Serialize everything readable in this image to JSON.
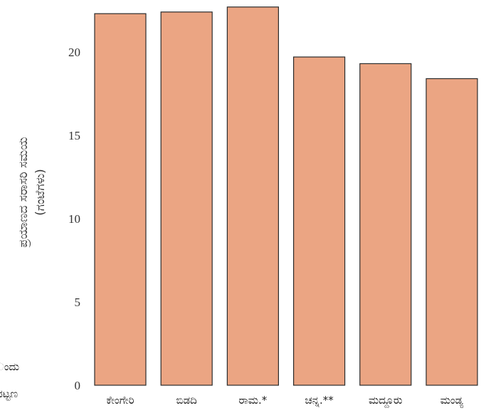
{
  "chart_data": {
    "type": "bar",
    "categories": [
      "ಕೇಂಗೇರಿ",
      "ಬಿಡದಿ",
      "ರಾಮ.*",
      "ಚನ್ನ.**",
      "ಮದ್ದೂರು",
      "ಮಂಡ್ಯ"
    ],
    "values": [
      22.3,
      22.4,
      22.7,
      19.7,
      19.3,
      18.4
    ],
    "ylabel_line1": "ಪ್ರಯಾಣದ ಸರಾಸರಿ ಸಮಯ",
    "ylabel_line2": "(ಗಂಟೆಗಳು)",
    "ylim": [
      0,
      23
    ],
    "yticks": [
      0,
      5,
      10,
      15,
      20
    ],
    "grid": false,
    "bar_color": "#EBA583",
    "bar_edge_color": "#2b2b2b"
  },
  "left_edge_text": [
    "ಂದು",
    "ಪಟ್ಟಣ"
  ]
}
